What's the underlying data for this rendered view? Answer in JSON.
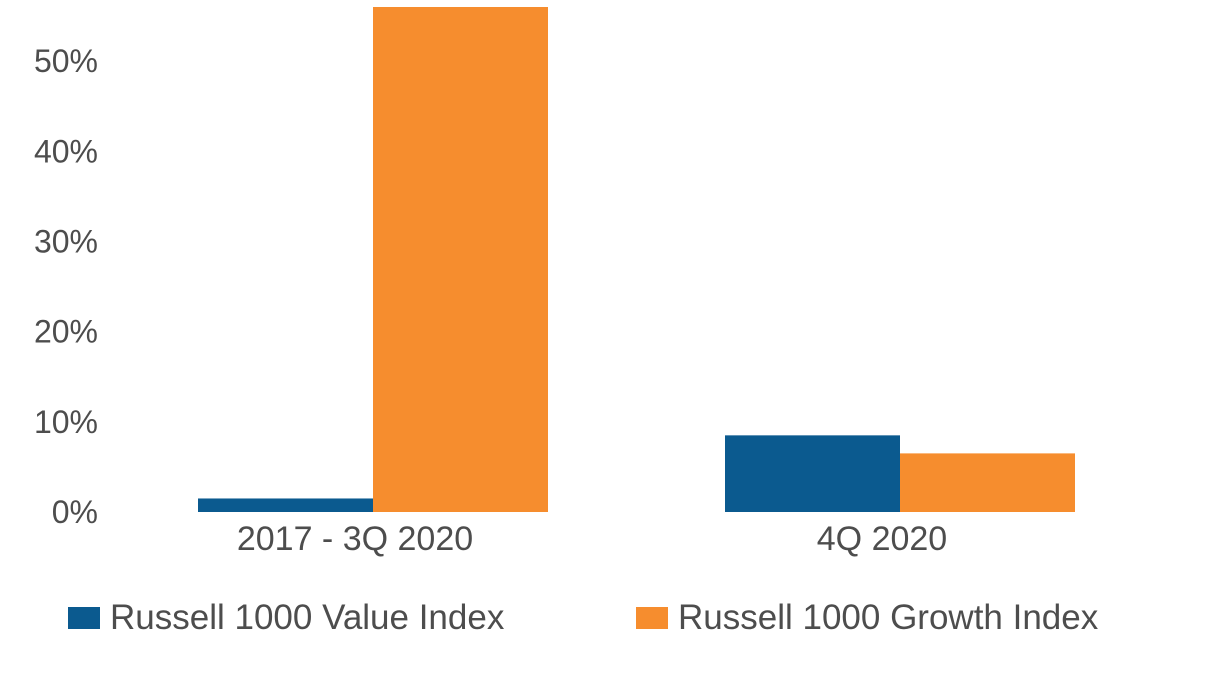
{
  "chart_data": {
    "type": "bar",
    "categories": [
      "2017 - 3Q 2020",
      "4Q 2020"
    ],
    "series": [
      {
        "name": "Russell 1000 Value Index",
        "values": [
          1.5,
          8.5
        ],
        "color": "#0b5a8f"
      },
      {
        "name": "Russell 1000 Growth Index",
        "values": [
          56,
          6.5
        ],
        "color": "#f68d2e"
      }
    ],
    "yticks": [
      0,
      10,
      20,
      30,
      40,
      50
    ],
    "ytick_labels": [
      "0%",
      "10%",
      "20%",
      "30%",
      "40%",
      "50%"
    ],
    "ylim": [
      0,
      56
    ],
    "grid": false,
    "legend_position": "bottom"
  }
}
